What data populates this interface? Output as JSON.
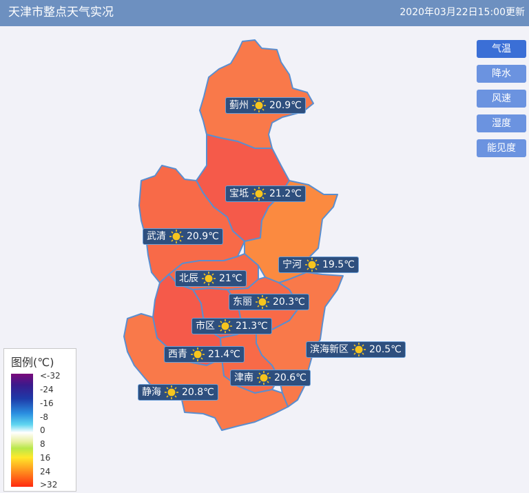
{
  "header": {
    "title": "天津市整点天气实况",
    "time": "2020年03月22日15:00更新"
  },
  "buttons": [
    "气温",
    "降水",
    "风速",
    "湿度",
    "能见度"
  ],
  "active_button": "气温",
  "stations": [
    {
      "name": "蓟州",
      "temp": "20.9℃",
      "weather_icon": "sun-icon"
    },
    {
      "name": "宝坻",
      "temp": "21.2℃",
      "weather_icon": "sun-icon"
    },
    {
      "name": "武清",
      "temp": "20.9℃",
      "weather_icon": "sun-icon"
    },
    {
      "name": "宁河",
      "temp": "19.5℃",
      "weather_icon": "sun-icon"
    },
    {
      "name": "北辰",
      "temp": "21℃",
      "weather_icon": "sun-icon"
    },
    {
      "name": "东丽",
      "temp": "20.3℃",
      "weather_icon": "sun-icon"
    },
    {
      "name": "市区",
      "temp": "21.3℃",
      "weather_icon": "sun-icon"
    },
    {
      "name": "西青",
      "temp": "21.4℃",
      "weather_icon": "sun-icon"
    },
    {
      "name": "滨海新区",
      "temp": "20.5℃",
      "weather_icon": "sun-icon"
    },
    {
      "name": "津南",
      "temp": "20.6℃",
      "weather_icon": "sun-icon"
    },
    {
      "name": "静海",
      "temp": "20.8℃",
      "weather_icon": "sun-icon"
    }
  ],
  "legend": {
    "title": "图例(℃)",
    "ticks": [
      "<-32",
      "-24",
      "-16",
      "-8",
      "0",
      "8",
      "16",
      "24",
      ">32"
    ]
  },
  "colors": {
    "header": "#6d90c0",
    "warm": "#f9794a",
    "warmer": "#f86a48",
    "hot": "#f55a4a",
    "cool": "#fb8a40",
    "border": "#5a8ecf"
  }
}
